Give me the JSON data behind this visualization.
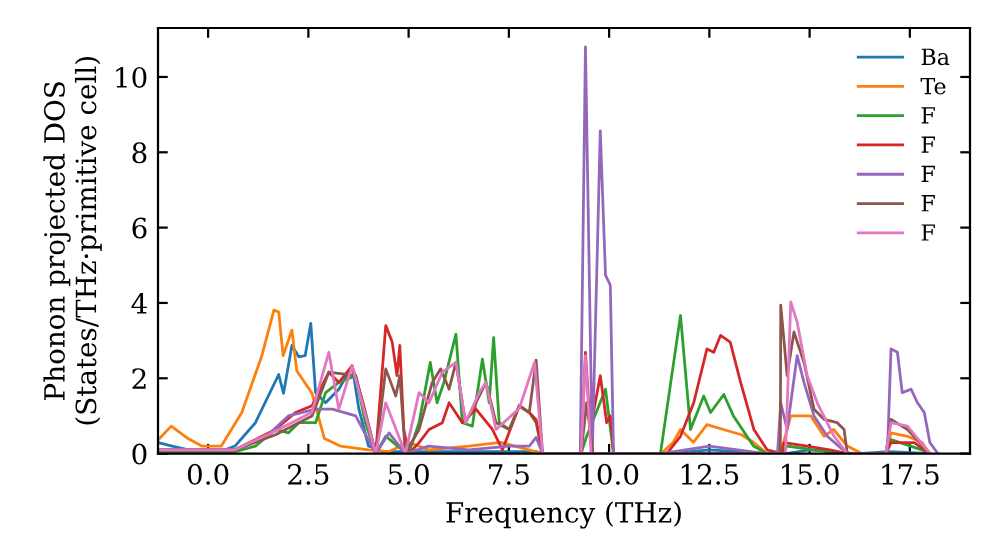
{
  "chart_data": {
    "type": "line",
    "xlabel": "Frequency (THz)",
    "ylabel": "Phonon projected DOS\n(States/THz·primitive cell)",
    "xlim": [
      -1.25,
      19.0
    ],
    "xticks": [
      {
        "value": 0,
        "label": "0.0"
      },
      2.5,
      {
        "value": 5,
        "label": "5.0"
      },
      7.5,
      {
        "value": 10,
        "label": "10.0"
      },
      12.5,
      {
        "value": 15,
        "label": "15.0"
      },
      17.5
    ],
    "ylim": [
      0,
      11.3
    ],
    "yticks": [
      0,
      2,
      4,
      6,
      8,
      10
    ],
    "legend": "top right",
    "grid": false,
    "marker": "none",
    "line_style": "solid",
    "series": [
      {
        "name": "Ba",
        "color": "#1f77b4",
        "x": [
          -1.24,
          -0.9,
          -0.3,
          0.3,
          0.67,
          1.18,
          1.76,
          1.88,
          2.09,
          2.26,
          2.42,
          2.56,
          2.68,
          2.93,
          3.26,
          3.59,
          3.76,
          4.0,
          4.34,
          6.0,
          8.2,
          8.34,
          11.5,
          12.5,
          13.9,
          14.4,
          15.0,
          16.2,
          17.0,
          18.0
        ],
        "values": [
          0.29,
          0.2,
          0.05,
          0.05,
          0.2,
          0.82,
          2.1,
          1.6,
          2.87,
          2.57,
          2.6,
          3.46,
          1.62,
          1.35,
          1.71,
          2.33,
          1.18,
          0.2,
          0.05,
          0.05,
          0.05,
          0,
          0,
          0.1,
          0,
          0,
          0.1,
          0,
          0.05,
          0
        ]
      },
      {
        "name": "Te",
        "color": "#ff7f0e",
        "x": [
          -1.24,
          -0.92,
          -0.5,
          -0.16,
          0.33,
          0.84,
          1.34,
          1.64,
          1.76,
          1.87,
          2.09,
          2.21,
          2.59,
          2.9,
          3.3,
          4.0,
          4.5,
          5.0,
          5.5,
          6.5,
          7.3,
          8.0,
          8.34,
          11.3,
          11.6,
          11.78,
          12.1,
          12.44,
          12.85,
          13.3,
          13.6,
          13.94,
          14.28,
          14.53,
          15.03,
          15.36,
          15.6,
          15.94,
          16.3,
          16.9,
          17.03,
          17.44,
          17.8,
          18.0
        ],
        "values": [
          0.37,
          0.73,
          0.4,
          0.2,
          0.2,
          1.09,
          2.6,
          3.81,
          3.76,
          2.6,
          3.28,
          2.2,
          1.6,
          0.4,
          0.2,
          0.1,
          0.05,
          0.3,
          0.1,
          0.2,
          0.3,
          0.1,
          0,
          0,
          0.3,
          0.64,
          0.3,
          0.77,
          0.64,
          0.5,
          0.3,
          0,
          0,
          1.0,
          1.0,
          0.46,
          0.64,
          0.2,
          0,
          0,
          0.55,
          0.46,
          0.3,
          0
        ]
      },
      {
        "name": "F",
        "color": "#2ca02c",
        "x": [
          -1.24,
          0.67,
          1.18,
          1.68,
          2.0,
          2.26,
          2.68,
          2.93,
          3.26,
          3.68,
          3.92,
          4.18,
          4.43,
          4.84,
          5.0,
          5.26,
          5.54,
          5.71,
          5.88,
          6.18,
          6.34,
          6.59,
          6.84,
          7.01,
          7.12,
          7.26,
          7.51,
          7.76,
          8.01,
          8.18,
          8.34,
          9.3,
          9.44,
          9.91,
          10.11,
          11.28,
          11.78,
          12.03,
          12.36,
          12.53,
          12.86,
          13.1,
          13.6,
          13.94,
          14.3,
          14.44,
          15.1,
          15.94,
          16.9,
          17.03,
          17.8,
          18.0
        ],
        "values": [
          0.05,
          0.05,
          0.2,
          0.64,
          0.55,
          0.82,
          0.82,
          1.62,
          1.89,
          2.07,
          0.82,
          0,
          0.46,
          0.1,
          0,
          0.82,
          2.42,
          1.35,
          1.89,
          3.17,
          0.82,
          0.73,
          2.51,
          1.35,
          3.08,
          0.82,
          0.64,
          1.27,
          1.09,
          0.82,
          0,
          0,
          0.46,
          1.71,
          0,
          0,
          3.67,
          0.64,
          1.53,
          1.09,
          1.57,
          1.0,
          0.2,
          0,
          0,
          0.2,
          0.1,
          0,
          0,
          0.37,
          0.1,
          0
        ]
      },
      {
        "name": "F",
        "color": "#d62728",
        "x": [
          -1.24,
          0.67,
          1.68,
          2.18,
          2.59,
          3.01,
          3.26,
          3.59,
          3.84,
          4.18,
          4.43,
          4.59,
          4.71,
          4.78,
          4.88,
          5.0,
          5.26,
          5.51,
          5.84,
          6.01,
          6.34,
          6.68,
          7.09,
          7.34,
          7.76,
          8.01,
          8.18,
          8.34,
          9.3,
          9.41,
          9.53,
          9.78,
          9.94,
          10.03,
          10.11,
          11.44,
          11.78,
          12.11,
          12.44,
          12.61,
          12.78,
          13.02,
          13.28,
          13.61,
          13.94,
          14.3,
          14.36,
          14.94,
          15.5,
          15.94,
          16.9,
          17.03,
          17.61,
          18.0
        ],
        "values": [
          0.1,
          0.1,
          0.64,
          1.09,
          1.27,
          2.16,
          1.89,
          2.33,
          1.44,
          0,
          3.4,
          2.96,
          2.07,
          2.87,
          0.64,
          0,
          0.29,
          0.64,
          0.82,
          1.35,
          0.82,
          1.18,
          0.64,
          0.1,
          1.27,
          1.09,
          0.9,
          0,
          0,
          2.69,
          0.64,
          2.07,
          0.82,
          1.0,
          0,
          0,
          0.46,
          1.35,
          2.78,
          2.69,
          3.14,
          2.96,
          1.89,
          0.64,
          0.1,
          0,
          0.29,
          0.2,
          0.1,
          0,
          0,
          0.29,
          0.29,
          0
        ]
      },
      {
        "name": "F",
        "color": "#9467bd",
        "x": [
          -1.24,
          0.67,
          1.5,
          2.0,
          2.68,
          3.1,
          3.68,
          4.18,
          4.51,
          4.92,
          5.5,
          6.5,
          7.5,
          8.01,
          8.18,
          8.34,
          9.28,
          9.41,
          9.58,
          9.78,
          9.91,
          10.03,
          10.11,
          11.3,
          12.5,
          13.9,
          14.2,
          14.28,
          14.44,
          14.69,
          14.86,
          15.11,
          15.44,
          15.94,
          16.94,
          17.03,
          17.19,
          17.31,
          17.53,
          17.69,
          17.86,
          18.0,
          18.2
        ],
        "values": [
          0.1,
          0.1,
          0.5,
          1.0,
          1.18,
          1.18,
          1.0,
          0,
          0.55,
          0,
          0.2,
          0.1,
          0.2,
          0.2,
          0.43,
          0,
          0,
          10.8,
          0,
          8.57,
          4.74,
          4.47,
          0,
          0,
          0.2,
          0,
          0,
          1.35,
          0.64,
          2.6,
          1.89,
          1.0,
          0.46,
          0,
          0,
          2.78,
          2.69,
          1.62,
          1.71,
          1.35,
          1.09,
          0.29,
          0
        ]
      },
      {
        "name": "F",
        "color": "#8c564b",
        "x": [
          -1.24,
          0.67,
          1.68,
          2.59,
          3.01,
          3.68,
          4.18,
          4.43,
          4.68,
          4.78,
          4.92,
          5.26,
          5.59,
          5.8,
          6.01,
          6.18,
          6.42,
          6.68,
          6.93,
          7.18,
          7.51,
          7.76,
          8.01,
          8.18,
          8.34,
          9.3,
          9.44,
          9.6,
          13.94,
          14.27,
          14.28,
          14.44,
          14.61,
          14.86,
          15.11,
          15.36,
          15.69,
          15.86,
          15.94,
          16.9,
          17.03,
          17.44,
          18.0
        ],
        "values": [
          0.1,
          0.1,
          0.5,
          1.0,
          2.16,
          2.07,
          0,
          2.25,
          1.53,
          2.07,
          0,
          0.64,
          1.89,
          2.25,
          1.71,
          2.42,
          0.82,
          1.35,
          1.89,
          0.82,
          0.64,
          1.27,
          1.09,
          2.48,
          0,
          0,
          1.35,
          0,
          0,
          0,
          3.94,
          2.07,
          3.23,
          2.42,
          1.18,
          0.91,
          0.82,
          0.64,
          0,
          0,
          0.91,
          0.64,
          0
        ]
      },
      {
        "name": "F",
        "color": "#e377c2",
        "x": [
          -1.24,
          0.67,
          1.68,
          2.59,
          3.01,
          3.26,
          3.59,
          4.18,
          4.43,
          4.92,
          5.26,
          5.51,
          5.84,
          6.18,
          6.42,
          6.76,
          6.93,
          7.18,
          7.76,
          8.14,
          8.34,
          9.3,
          9.41,
          9.55,
          14.4,
          14.53,
          14.69,
          14.94,
          15.19,
          15.61,
          15.94,
          16.9,
          17.03,
          17.44,
          18.0
        ],
        "values": [
          0.1,
          0.1,
          0.6,
          1.1,
          2.69,
          1.18,
          2.33,
          0,
          1.35,
          0,
          1.62,
          1.35,
          2.16,
          2.42,
          0.82,
          1.62,
          1.89,
          0.64,
          1.2,
          2.42,
          0,
          0,
          2.6,
          0,
          0,
          4.03,
          3.49,
          2.07,
          1.35,
          0.46,
          0,
          0,
          0.82,
          0.73,
          0
        ]
      }
    ]
  }
}
